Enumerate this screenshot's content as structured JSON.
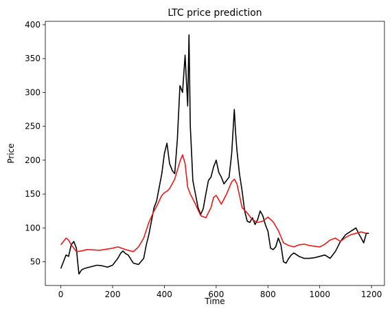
{
  "chart_data": {
    "type": "line",
    "title": "LTC price prediction",
    "xlabel": "Time",
    "ylabel": "Price",
    "xlim": [
      -60,
      1250
    ],
    "ylim": [
      15,
      405
    ],
    "xticks": [
      0,
      200,
      400,
      600,
      800,
      1000,
      1200
    ],
    "yticks": [
      50,
      100,
      150,
      200,
      250,
      300,
      350,
      400
    ],
    "grid": false,
    "legend": "none",
    "series": [
      {
        "color": "#000000",
        "x": [
          0,
          10,
          20,
          30,
          40,
          50,
          60,
          65,
          70,
          80,
          90,
          100,
          120,
          140,
          160,
          180,
          200,
          210,
          220,
          230,
          240,
          250,
          260,
          280,
          300,
          320,
          330,
          340,
          350,
          360,
          370,
          380,
          390,
          400,
          410,
          420,
          430,
          440,
          450,
          460,
          470,
          480,
          490,
          495,
          500,
          505,
          510,
          520,
          530,
          540,
          550,
          560,
          570,
          580,
          590,
          600,
          610,
          620,
          630,
          640,
          650,
          660,
          670,
          675,
          680,
          690,
          700,
          710,
          720,
          730,
          740,
          750,
          760,
          770,
          780,
          790,
          800,
          810,
          820,
          830,
          840,
          850,
          860,
          870,
          880,
          890,
          900,
          920,
          940,
          960,
          980,
          1000,
          1020,
          1040,
          1060,
          1080,
          1100,
          1120,
          1140,
          1150,
          1160,
          1170,
          1180,
          1190
        ],
        "y": [
          40,
          50,
          60,
          58,
          75,
          80,
          70,
          50,
          32,
          38,
          40,
          41,
          43,
          45,
          44,
          42,
          45,
          50,
          55,
          62,
          66,
          62,
          60,
          48,
          46,
          55,
          75,
          90,
          110,
          130,
          140,
          160,
          180,
          210,
          225,
          195,
          185,
          180,
          230,
          310,
          300,
          355,
          280,
          385,
          250,
          210,
          170,
          150,
          130,
          120,
          128,
          150,
          170,
          175,
          190,
          200,
          182,
          175,
          165,
          170,
          175,
          210,
          275,
          240,
          215,
          180,
          155,
          125,
          110,
          108,
          115,
          105,
          112,
          125,
          118,
          105,
          95,
          70,
          68,
          72,
          85,
          75,
          50,
          48,
          55,
          60,
          63,
          58,
          55,
          55,
          56,
          58,
          60,
          55,
          65,
          80,
          90,
          95,
          100,
          92,
          85,
          78,
          92,
          92
        ]
      },
      {
        "color": "#e41a1c",
        "x": [
          0,
          10,
          20,
          30,
          40,
          50,
          60,
          80,
          100,
          150,
          200,
          220,
          250,
          280,
          300,
          320,
          340,
          360,
          370,
          380,
          390,
          400,
          410,
          420,
          440,
          460,
          470,
          480,
          490,
          500,
          520,
          540,
          560,
          580,
          590,
          600,
          620,
          640,
          660,
          670,
          680,
          690,
          700,
          720,
          740,
          760,
          780,
          800,
          820,
          840,
          860,
          880,
          900,
          920,
          940,
          960,
          980,
          1000,
          1020,
          1040,
          1060,
          1080,
          1100,
          1120,
          1140,
          1160,
          1180
        ],
        "y": [
          75,
          80,
          85,
          82,
          75,
          70,
          65,
          66,
          68,
          67,
          70,
          72,
          68,
          65,
          72,
          85,
          108,
          125,
          132,
          140,
          148,
          152,
          154,
          158,
          172,
          198,
          208,
          195,
          160,
          150,
          135,
          118,
          115,
          130,
          145,
          148,
          135,
          150,
          168,
          172,
          165,
          148,
          130,
          122,
          112,
          108,
          110,
          116,
          109,
          96,
          78,
          74,
          72,
          75,
          76,
          74,
          73,
          72,
          76,
          82,
          85,
          80,
          86,
          90,
          92,
          94,
          92
        ]
      }
    ]
  }
}
